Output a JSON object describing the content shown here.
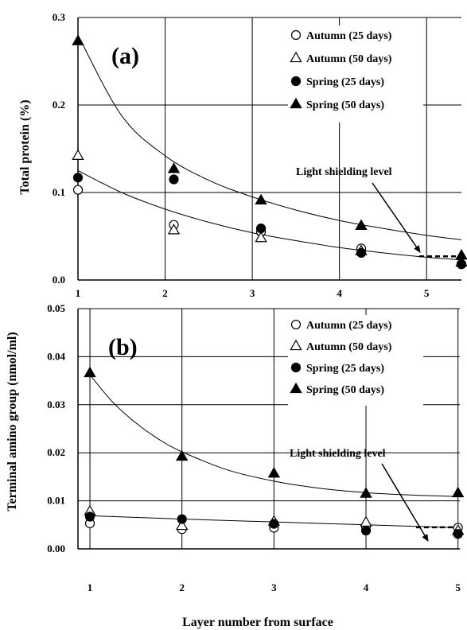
{
  "chart_data": [
    {
      "type": "scatter",
      "panel_label": "(a)",
      "ylabel": "Total protein (%)",
      "xlabel": "",
      "xlim": [
        1,
        5.4
      ],
      "ylim": [
        0,
        0.3
      ],
      "x_ticks": [
        "1",
        "2",
        "3",
        "4",
        "5"
      ],
      "y_ticks": [
        "0.0",
        "0.1",
        "0.2",
        "0.3"
      ],
      "grid": true,
      "legend_position": "top-right",
      "annotation": "Light shielding level",
      "shielding_level": 0.027,
      "series": [
        {
          "name": "Autumn (25 days)",
          "marker": "circle-open",
          "x": [
            1,
            2.1,
            3.1,
            4.25,
            5.4
          ],
          "y": [
            0.103,
            0.063,
            0.055,
            0.036,
            0.018
          ]
        },
        {
          "name": "Autumn (50 days)",
          "marker": "triangle-open",
          "x": [
            1,
            2.1,
            3.1,
            4.25,
            5.4
          ],
          "y": [
            0.142,
            0.057,
            0.048,
            0.033,
            0.02
          ]
        },
        {
          "name": "Spring (25 days)",
          "marker": "circle-filled",
          "x": [
            1,
            2.1,
            3.1,
            4.25,
            5.4
          ],
          "y": [
            0.117,
            0.115,
            0.059,
            0.031,
            0.018
          ]
        },
        {
          "name": "Spring (50 days)",
          "marker": "triangle-filled",
          "x": [
            1,
            2.1,
            3.1,
            4.25,
            5.4
          ],
          "y": [
            0.273,
            0.127,
            0.091,
            0.062,
            0.028
          ]
        }
      ],
      "fit_curves": [
        {
          "x": [
            1,
            1.5,
            2,
            2.5,
            3,
            3.5,
            4,
            4.5,
            5,
            5.4
          ],
          "y": [
            0.28,
            0.188,
            0.142,
            0.114,
            0.095,
            0.08,
            0.068,
            0.059,
            0.051,
            0.046
          ]
        },
        {
          "x": [
            1,
            1.5,
            2,
            2.5,
            3,
            3.5,
            4,
            4.5,
            5,
            5.4
          ],
          "y": [
            0.125,
            0.1,
            0.081,
            0.066,
            0.054,
            0.045,
            0.037,
            0.031,
            0.026,
            0.023
          ]
        }
      ]
    },
    {
      "type": "scatter",
      "panel_label": "(b)",
      "ylabel": "Terminal amino group (nmol/ml)",
      "xlabel": "Layer number from surface",
      "xlim": [
        1,
        5
      ],
      "ylim": [
        0,
        0.05
      ],
      "x_ticks": [
        "1",
        "2",
        "3",
        "4",
        "5"
      ],
      "y_ticks": [
        "0.00",
        "0.01",
        "0.02",
        "0.03",
        "0.04",
        "0.05"
      ],
      "grid": true,
      "legend_position": "top-right",
      "annotation": "Light shielding level",
      "shielding_level": 0.0045,
      "series": [
        {
          "name": "Autumn (25 days)",
          "marker": "circle-open",
          "x": [
            1,
            2,
            3,
            4,
            5
          ],
          "y": [
            0.0053,
            0.0041,
            0.0044,
            0.0046,
            0.0044
          ]
        },
        {
          "name": "Autumn (50 days)",
          "marker": "triangle-open",
          "x": [
            1,
            2,
            3,
            4,
            5
          ],
          "y": [
            0.0078,
            0.0048,
            0.0057,
            0.0055,
            0.0038
          ]
        },
        {
          "name": "Spring (25 days)",
          "marker": "circle-filled",
          "x": [
            1,
            2,
            3,
            4,
            5
          ],
          "y": [
            0.0067,
            0.0062,
            0.0052,
            0.0038,
            0.0031
          ]
        },
        {
          "name": "Spring (50 days)",
          "marker": "triangle-filled",
          "x": [
            1,
            2,
            3,
            4,
            5
          ],
          "y": [
            0.0366,
            0.0192,
            0.0157,
            0.0115,
            0.0116
          ]
        }
      ],
      "fit_curves": [
        {
          "x": [
            1,
            1.25,
            1.5,
            1.75,
            2,
            2.5,
            3,
            3.5,
            4,
            4.5,
            5
          ],
          "y": [
            0.0362,
            0.0305,
            0.0262,
            0.0228,
            0.0202,
            0.0164,
            0.0141,
            0.0126,
            0.0117,
            0.0112,
            0.0109
          ]
        },
        {
          "x": [
            1,
            2,
            3,
            4,
            5
          ],
          "y": [
            0.0069,
            0.0062,
            0.0056,
            0.005,
            0.0044
          ]
        }
      ]
    }
  ]
}
